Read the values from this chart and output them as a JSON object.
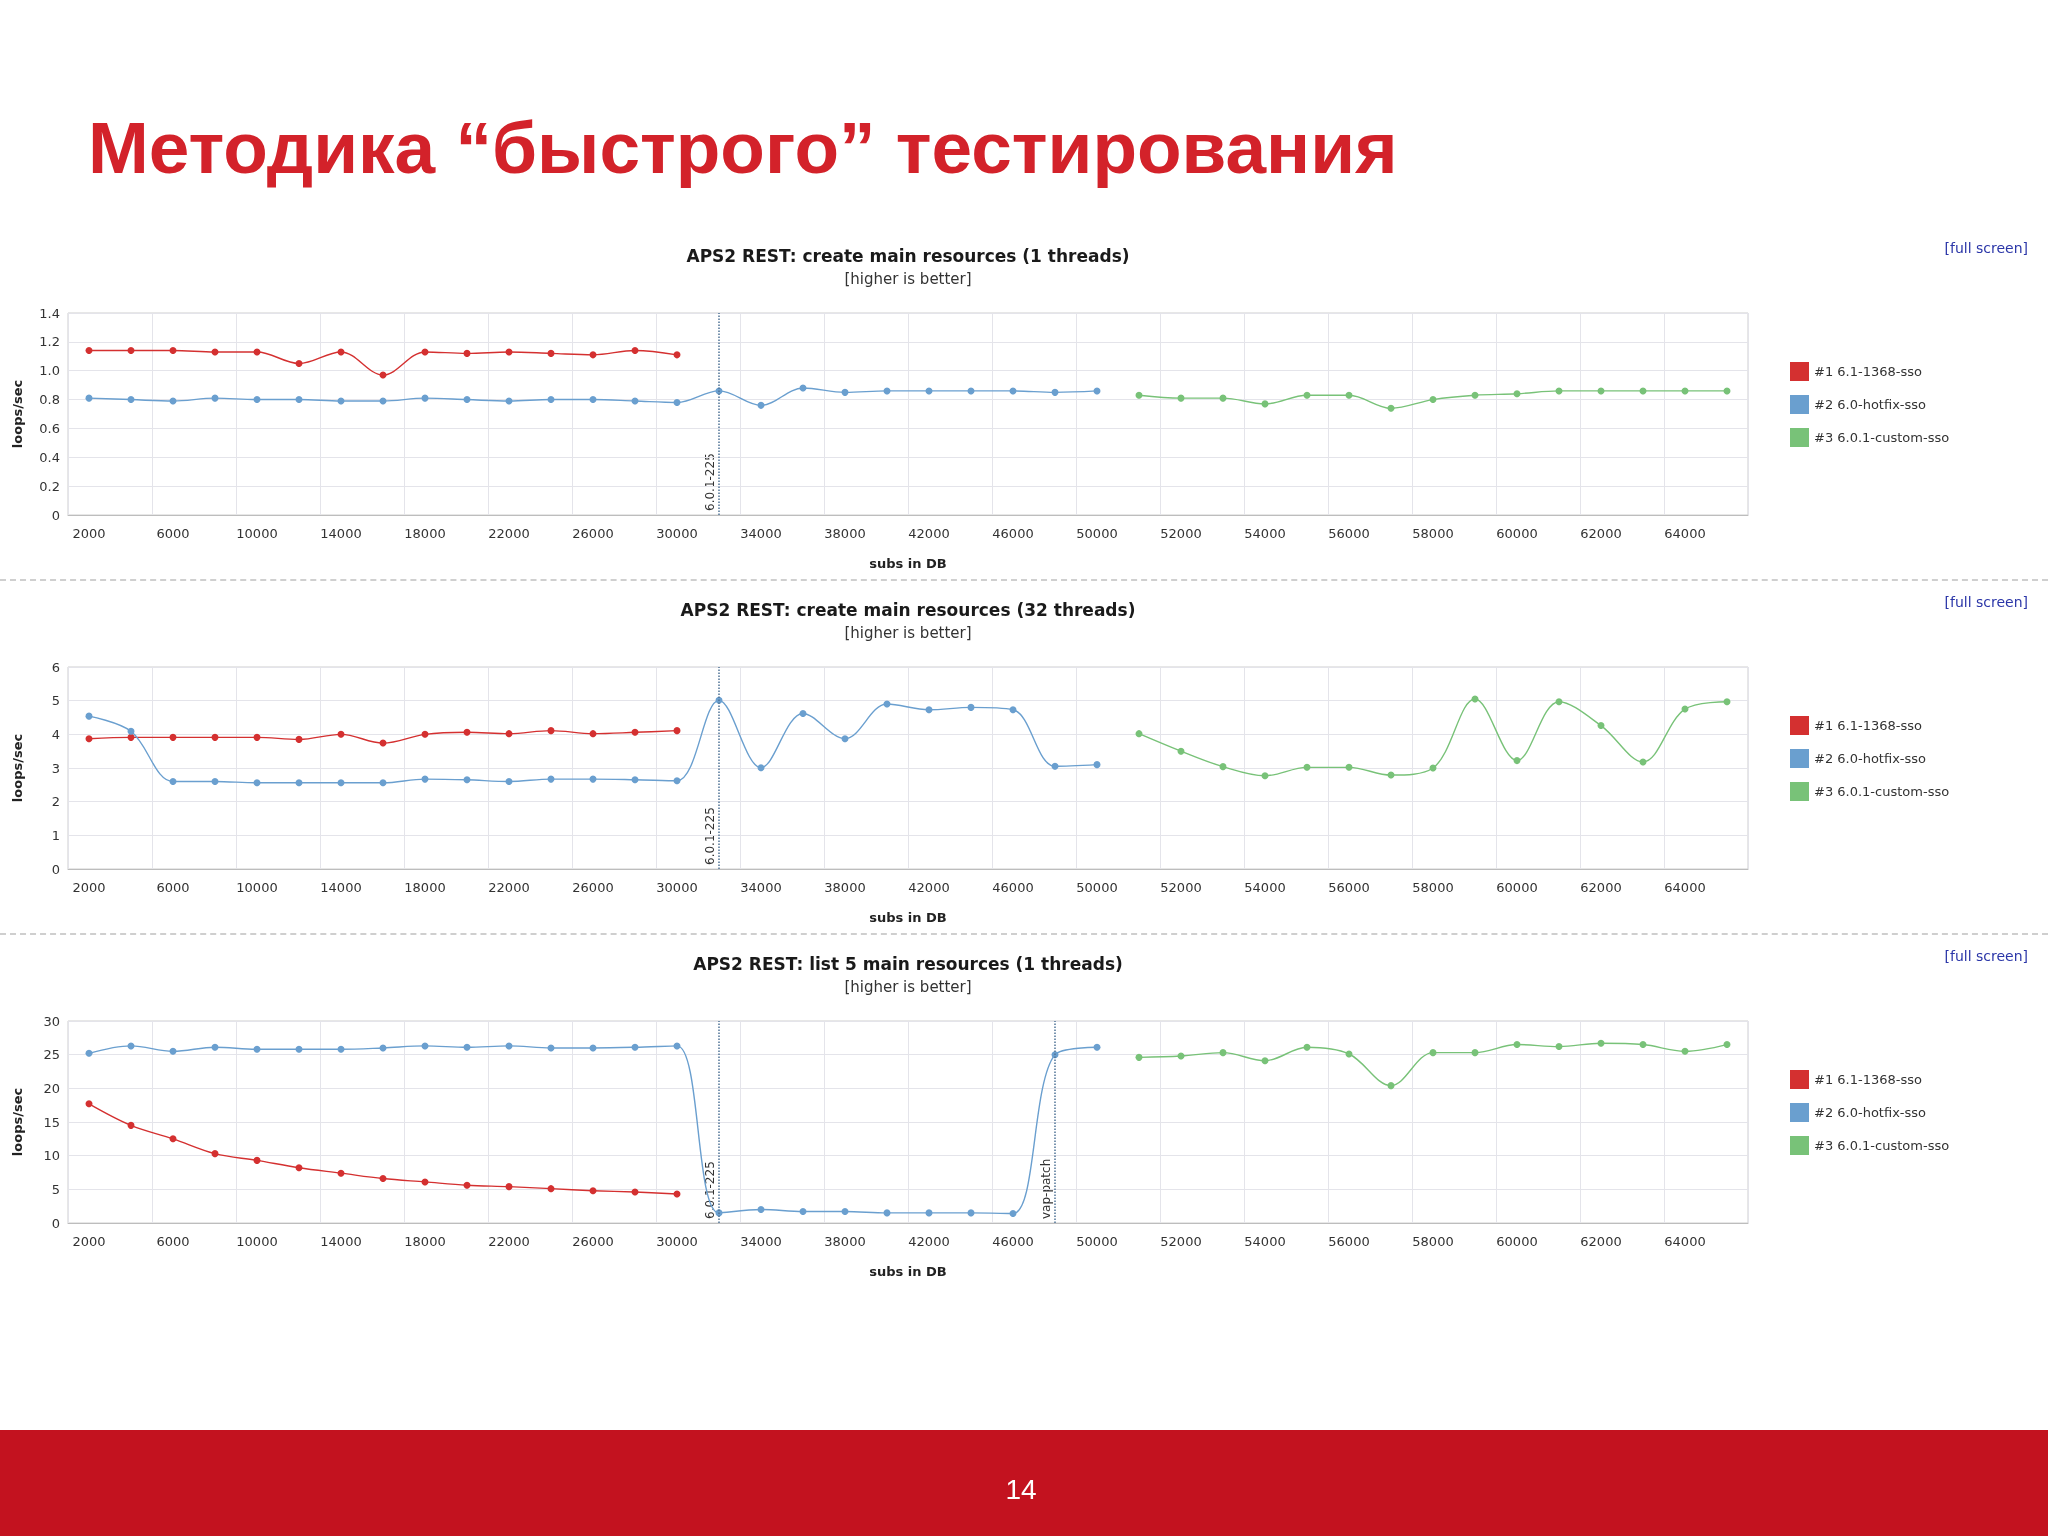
{
  "chart_data": [
    {
      "type": "other",
      "title": "Методика “быстрого” тестирования",
      "annotations": [
        "14"
      ]
    },
    {
      "type": "line",
      "title": "APS2 REST: create main resources (1 threads)",
      "subtitle": "[higher is better]",
      "xlabel": "subs in DB",
      "ylabel": "loops/sec",
      "annotations": [
        "[full screen]",
        "6.0.1-225"
      ],
      "categories": [
        "2000",
        null,
        "6000",
        null,
        "10000",
        null,
        "14000",
        null,
        "18000",
        null,
        "22000",
        null,
        "26000",
        null,
        "30000",
        null,
        "34000",
        null,
        "38000",
        null,
        "42000",
        null,
        "46000",
        null,
        "50000",
        null,
        "52000",
        null,
        "54000",
        null,
        "56000",
        null,
        "58000",
        null,
        "60000",
        null,
        "62000",
        null,
        "64000",
        null
      ],
      "series": [
        {
          "name": "#1 6.1-1368-sso",
          "color": "#d43030",
          "values": [
            1.14,
            1.14,
            1.14,
            1.13,
            1.13,
            1.05,
            1.13,
            0.97,
            1.13,
            1.12,
            1.13,
            1.12,
            1.11,
            1.14,
            1.11,
            null,
            null,
            null,
            null,
            null,
            null,
            null,
            null,
            null,
            null,
            null,
            null,
            null,
            null,
            null,
            null,
            null,
            null,
            null,
            null,
            null,
            null,
            null,
            null,
            null
          ]
        },
        {
          "name": "#2 6.0-hotfix-sso",
          "color": "#6a9fcf",
          "values": [
            0.81,
            0.8,
            0.79,
            0.81,
            0.8,
            0.8,
            0.79,
            0.79,
            0.81,
            0.8,
            0.79,
            0.8,
            0.8,
            0.79,
            0.78,
            0.86,
            0.76,
            0.88,
            0.85,
            0.86,
            0.86,
            0.86,
            0.86,
            0.85,
            0.86,
            null,
            null,
            null,
            null,
            null,
            null,
            null,
            null,
            null,
            null,
            null,
            null,
            null,
            null,
            null
          ]
        },
        {
          "name": "#3 6.0.1-custom-sso",
          "color": "#78c278",
          "values": [
            null,
            null,
            null,
            null,
            null,
            null,
            null,
            null,
            null,
            null,
            null,
            null,
            null,
            null,
            null,
            null,
            null,
            null,
            null,
            null,
            null,
            null,
            null,
            null,
            null,
            0.83,
            0.81,
            0.81,
            0.77,
            0.83,
            0.83,
            0.74,
            0.8,
            0.83,
            0.84,
            0.86,
            0.86,
            0.86,
            0.86,
            0.86
          ]
        }
      ],
      "ylim": [
        0,
        1.4
      ],
      "yticks": [
        0,
        0.2,
        0.4,
        0.6,
        0.8,
        {
          "value": 1,
          "label": "1.0"
        },
        1.2,
        1.4
      ],
      "grid": true,
      "legend": "right",
      "marker": "circle"
    },
    {
      "type": "line",
      "title": "APS2 REST: create main resources (32 threads)",
      "subtitle": "[higher is better]",
      "xlabel": "subs in DB",
      "ylabel": "loops/sec",
      "annotations": [
        "[full screen]",
        "6.0.1-225"
      ],
      "categories": [
        "2000",
        null,
        "6000",
        null,
        "10000",
        null,
        "14000",
        null,
        "18000",
        null,
        "22000",
        null,
        "26000",
        null,
        "30000",
        null,
        "34000",
        null,
        "38000",
        null,
        "42000",
        null,
        "46000",
        null,
        "50000",
        null,
        "52000",
        null,
        "54000",
        null,
        "56000",
        null,
        "58000",
        null,
        "60000",
        null,
        "62000",
        null,
        "64000",
        null
      ],
      "series": [
        {
          "name": "#1 6.1-1368-sso",
          "color": "#d43030",
          "values": [
            3.87,
            3.91,
            3.91,
            3.91,
            3.91,
            3.85,
            4.0,
            3.74,
            4.0,
            4.06,
            4.02,
            4.11,
            4.02,
            4.06,
            4.11,
            null,
            null,
            null,
            null,
            null,
            null,
            null,
            null,
            null,
            null,
            null,
            null,
            null,
            null,
            null,
            null,
            null,
            null,
            null,
            null,
            null,
            null,
            null,
            null,
            null
          ]
        },
        {
          "name": "#2 6.0-hotfix-sso",
          "color": "#6a9fcf",
          "values": [
            4.54,
            4.09,
            2.6,
            2.6,
            2.56,
            2.56,
            2.56,
            2.56,
            2.67,
            2.65,
            2.6,
            2.67,
            2.67,
            2.65,
            2.62,
            5.01,
            3.01,
            4.62,
            3.87,
            4.9,
            4.73,
            4.8,
            4.73,
            3.05,
            3.1,
            null,
            null,
            null,
            null,
            null,
            null,
            null,
            null,
            null,
            null,
            null,
            null,
            null,
            null,
            null
          ]
        },
        {
          "name": "#3 6.0.1-custom-sso",
          "color": "#78c278",
          "values": [
            null,
            null,
            null,
            null,
            null,
            null,
            null,
            null,
            null,
            null,
            null,
            null,
            null,
            null,
            null,
            null,
            null,
            null,
            null,
            null,
            null,
            null,
            null,
            null,
            null,
            4.02,
            3.5,
            3.04,
            2.77,
            3.02,
            3.02,
            2.79,
            3.0,
            5.05,
            3.22,
            4.97,
            4.26,
            3.18,
            4.75,
            4.97
          ]
        }
      ],
      "ylim": [
        0,
        6
      ],
      "yticks": [
        0,
        1,
        2,
        3,
        4,
        5,
        6
      ],
      "grid": true,
      "legend": "right",
      "marker": "circle"
    },
    {
      "type": "line",
      "title": "APS2 REST: list 5 main resources (1 threads)",
      "subtitle": "[higher is better]",
      "xlabel": "subs in DB",
      "ylabel": "loops/sec",
      "annotations": [
        "[full screen]",
        "6.0.1-225",
        "vap-patch"
      ],
      "categories": [
        "2000",
        null,
        "6000",
        null,
        "10000",
        null,
        "14000",
        null,
        "18000",
        null,
        "22000",
        null,
        "26000",
        null,
        "30000",
        null,
        "34000",
        null,
        "38000",
        null,
        "42000",
        null,
        "46000",
        null,
        "50000",
        null,
        "52000",
        null,
        "54000",
        null,
        "56000",
        null,
        "58000",
        null,
        "60000",
        null,
        "62000",
        null,
        "64000",
        null
      ],
      "series": [
        {
          "name": "#1 6.1-1368-sso",
          "color": "#d43030",
          "values": [
            17.7,
            14.5,
            12.5,
            10.3,
            9.3,
            8.2,
            7.4,
            6.6,
            6.1,
            5.6,
            5.4,
            5.1,
            4.8,
            4.6,
            4.3,
            null,
            null,
            null,
            null,
            null,
            null,
            null,
            null,
            null,
            null,
            null,
            null,
            null,
            null,
            null,
            null,
            null,
            null,
            null,
            null,
            null,
            null,
            null,
            null,
            null
          ]
        },
        {
          "name": "#2 6.0-hotfix-sso",
          "color": "#6a9fcf",
          "values": [
            25.2,
            26.3,
            25.5,
            26.1,
            25.8,
            25.8,
            25.8,
            26.0,
            26.3,
            26.1,
            26.3,
            26.0,
            26.0,
            26.1,
            26.3,
            1.5,
            2.0,
            1.7,
            1.7,
            1.5,
            1.5,
            1.5,
            1.4,
            25.0,
            26.1,
            null,
            null,
            null,
            null,
            null,
            null,
            null,
            null,
            null,
            null,
            null,
            null,
            null,
            null,
            null
          ]
        },
        {
          "name": "#3 6.0.1-custom-sso",
          "color": "#78c278",
          "values": [
            null,
            null,
            null,
            null,
            null,
            null,
            null,
            null,
            null,
            null,
            null,
            null,
            null,
            null,
            null,
            null,
            null,
            null,
            null,
            null,
            null,
            null,
            null,
            null,
            null,
            24.6,
            24.8,
            25.3,
            24.1,
            26.1,
            25.1,
            20.4,
            25.3,
            25.3,
            26.5,
            26.2,
            26.7,
            26.5,
            25.5,
            26.5
          ]
        }
      ],
      "ylim": [
        0,
        30
      ],
      "yticks": [
        0,
        5,
        10,
        15,
        20,
        25,
        30
      ],
      "grid": true,
      "legend": "right",
      "marker": "circle"
    }
  ]
}
